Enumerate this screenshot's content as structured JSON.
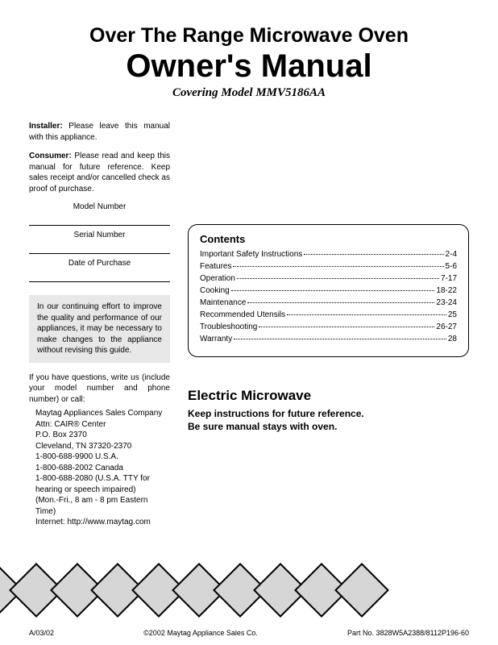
{
  "title1": "Over The Range Microwave Oven",
  "title2": "Owner's Manual",
  "subtitle": "Covering Model MMV5186AA",
  "installer_label": "Installer:",
  "installer_text": " Please leave this manual with this appliance.",
  "consumer_label": "Consumer:",
  "consumer_text": " Please read and keep this manual for future reference. Keep sales receipt and/or cancelled check as proof of purchase.",
  "fields": {
    "model": "Model Number",
    "serial": "Serial Number",
    "date": "Date of Purchase"
  },
  "improve_text": "In our continuing effort to improve the quality and performance of our appliances, it may be necessary to make changes to the appliance without revising this guide.",
  "questions_text": "If you have questions, write us (include your model number and phone number) or call:",
  "address": {
    "l1": "Maytag Appliances Sales Company",
    "l2": "Attn: CAIR® Center",
    "l3": "P.O. Box 2370",
    "l4": "Cleveland, TN  37320-2370",
    "l5": "1-800-688-9900 U.S.A.",
    "l6": "1-800-688-2002 Canada",
    "l7": "1-800-688-2080 (U.S.A. TTY for",
    "l8": "  hearing or speech impaired)",
    "l9": "(Mon.-Fri., 8 am - 8 pm Eastern Time)",
    "l10": "Internet:  http://www.maytag.com"
  },
  "contents_title": "Contents",
  "toc": [
    {
      "label": "Important Safety Instructions",
      "page": "2-4"
    },
    {
      "label": "Features",
      "page": "5-6"
    },
    {
      "label": "Operation",
      "page": "7-17"
    },
    {
      "label": "Cooking",
      "page": "18-22"
    },
    {
      "label": "Maintenance",
      "page": "23-24"
    },
    {
      "label": "Recommended Utensils",
      "page": "25"
    },
    {
      "label": "Troubleshooting",
      "page": "26-27"
    },
    {
      "label": "Warranty",
      "page": "28"
    }
  ],
  "section_head": "Electric Microwave",
  "section_sub1": "Keep instructions for future reference.",
  "section_sub2": "Be sure manual stays with oven.",
  "footer": {
    "left": "A/03/02",
    "center": "©2002 Maytag Appliance Sales Co.",
    "right": "Part No. 3828W5A2388/8112P196-60"
  },
  "diamond_color": "#d6d6d6"
}
